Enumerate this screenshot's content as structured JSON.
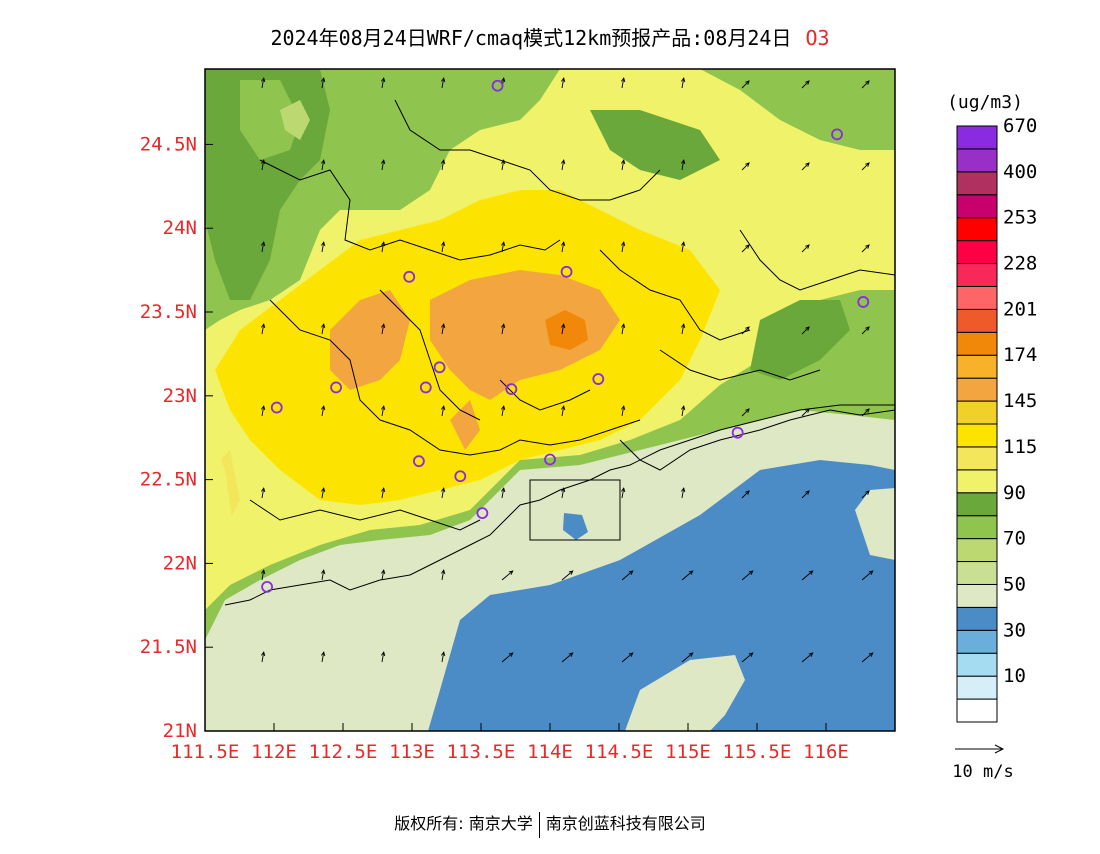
{
  "title": {
    "main": "2024年08月24日WRF/cmaq模式12km预报产品:08月24日",
    "species": "O3"
  },
  "chart_data": {
    "type": "heatmap",
    "x_ticks": [
      "111.5E",
      "112E",
      "112.5E",
      "113E",
      "113.5E",
      "114E",
      "114.5E",
      "115E",
      "115.5E",
      "116E"
    ],
    "y_ticks": [
      "24.5N",
      "24N",
      "23.5N",
      "23N",
      "22.5N",
      "22N",
      "21.5N",
      "21N"
    ],
    "xlim": [
      111.5,
      116.5
    ],
    "ylim": [
      21.0,
      24.95
    ],
    "colorbar": {
      "unit": "(ug/m3)",
      "levels": [
        {
          "label": "",
          "color": "#ffffff"
        },
        {
          "label": "10",
          "color": "#d6eef8"
        },
        {
          "label": "",
          "color": "#a6dcf2"
        },
        {
          "label": "30",
          "color": "#6aaedc"
        },
        {
          "label": "",
          "color": "#4b8cc6"
        },
        {
          "label": "50",
          "color": "#dfe8c4"
        },
        {
          "label": "",
          "color": "#c9e094"
        },
        {
          "label": "70",
          "color": "#bcd870"
        },
        {
          "label": "",
          "color": "#8fc44e"
        },
        {
          "label": "90",
          "color": "#6aa83c"
        },
        {
          "label": "",
          "color": "#f0f26a"
        },
        {
          "label": "115",
          "color": "#f4e65c"
        },
        {
          "label": "",
          "color": "#fde400"
        },
        {
          "label": "145",
          "color": "#f2d02a"
        },
        {
          "label": "",
          "color": "#f3a640"
        },
        {
          "label": "174",
          "color": "#f7b12a"
        },
        {
          "label": "",
          "color": "#f2880a"
        },
        {
          "label": "201",
          "color": "#ee5a2a"
        },
        {
          "label": "",
          "color": "#fe6566"
        },
        {
          "label": "228",
          "color": "#f8295a"
        },
        {
          "label": "",
          "color": "#ff0044"
        },
        {
          "label": "253",
          "color": "#ff0000"
        },
        {
          "label": "",
          "color": "#c8006e"
        },
        {
          "label": "400",
          "color": "#b03060"
        },
        {
          "label": "",
          "color": "#9830c8"
        },
        {
          "label": "670",
          "color": "#8a2be2"
        }
      ]
    },
    "stations": [
      [
        113.62,
        24.85
      ],
      [
        116.08,
        24.56
      ],
      [
        112.98,
        23.71
      ],
      [
        114.12,
        23.74
      ],
      [
        116.27,
        23.56
      ],
      [
        112.45,
        23.05
      ],
      [
        112.02,
        22.93
      ],
      [
        113.1,
        23.05
      ],
      [
        113.2,
        23.17
      ],
      [
        113.72,
        23.04
      ],
      [
        114.35,
        23.1
      ],
      [
        114.0,
        22.62
      ],
      [
        113.05,
        22.61
      ],
      [
        113.35,
        22.52
      ],
      [
        113.51,
        22.3
      ],
      [
        111.95,
        21.86
      ],
      [
        115.36,
        22.78
      ]
    ],
    "wind_reference": "10 m/s"
  },
  "footer": {
    "left": "版权所有: 南京大学",
    "right": "南京创蓝科技有限公司"
  }
}
